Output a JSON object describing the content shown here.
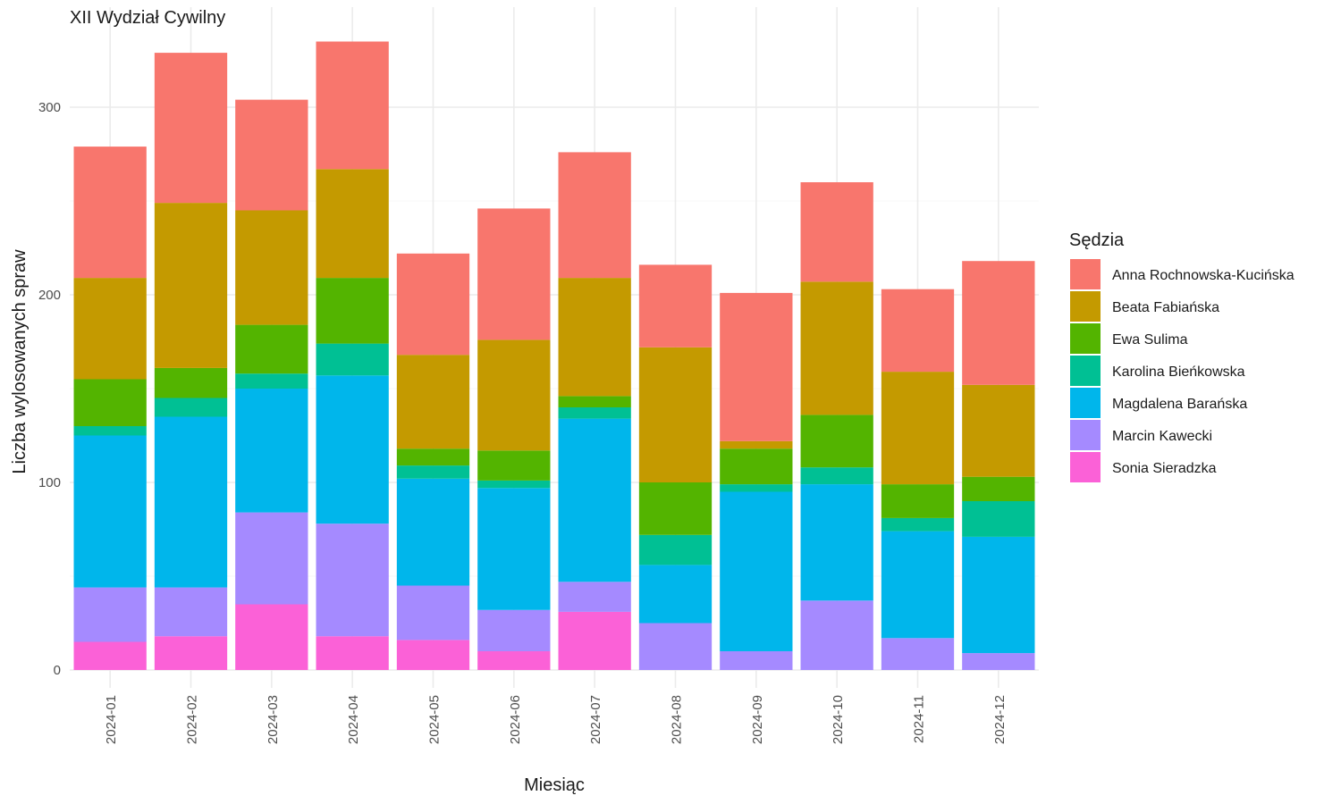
{
  "chart_data": {
    "type": "bar",
    "stacked": true,
    "title": "XII Wydział Cywilny",
    "xlabel": "Miesiąc",
    "ylabel": "Liczba wylosowanych spraw",
    "ylim": [
      0,
      345
    ],
    "yticks": [
      0,
      100,
      200,
      300
    ],
    "grid": true,
    "legend_title": "Sędzia",
    "legend_position": "right",
    "categories": [
      "2024-01",
      "2024-02",
      "2024-03",
      "2024-04",
      "2024-05",
      "2024-06",
      "2024-07",
      "2024-08",
      "2024-09",
      "2024-10",
      "2024-11",
      "2024-12"
    ],
    "series": [
      {
        "name": "Anna Rochnowska-Kucińska",
        "color": "#F8766D",
        "values": [
          70,
          80,
          59,
          68,
          54,
          70,
          67,
          44,
          79,
          53,
          44,
          66
        ]
      },
      {
        "name": "Beata Fabiańska",
        "color": "#C49A00",
        "values": [
          54,
          88,
          61,
          58,
          50,
          59,
          63,
          72,
          4,
          71,
          60,
          49
        ]
      },
      {
        "name": "Ewa Sulima",
        "color": "#53B400",
        "values": [
          25,
          16,
          26,
          35,
          9,
          16,
          6,
          28,
          19,
          28,
          18,
          13
        ]
      },
      {
        "name": "Karolina Bieńkowska",
        "color": "#00C094",
        "values": [
          5,
          10,
          8,
          17,
          7,
          4,
          6,
          16,
          4,
          9,
          7,
          19
        ]
      },
      {
        "name": "Magdalena Barańska",
        "color": "#00B6EB",
        "values": [
          81,
          91,
          66,
          79,
          57,
          65,
          87,
          31,
          85,
          62,
          57,
          62
        ]
      },
      {
        "name": "Marcin Kawecki",
        "color": "#A58AFF",
        "values": [
          29,
          26,
          49,
          60,
          29,
          22,
          16,
          25,
          10,
          37,
          17,
          9
        ]
      },
      {
        "name": "Sonia Sieradzka",
        "color": "#FB61D7",
        "values": [
          15,
          18,
          35,
          18,
          16,
          10,
          31,
          0,
          0,
          0,
          0,
          0
        ]
      }
    ]
  }
}
